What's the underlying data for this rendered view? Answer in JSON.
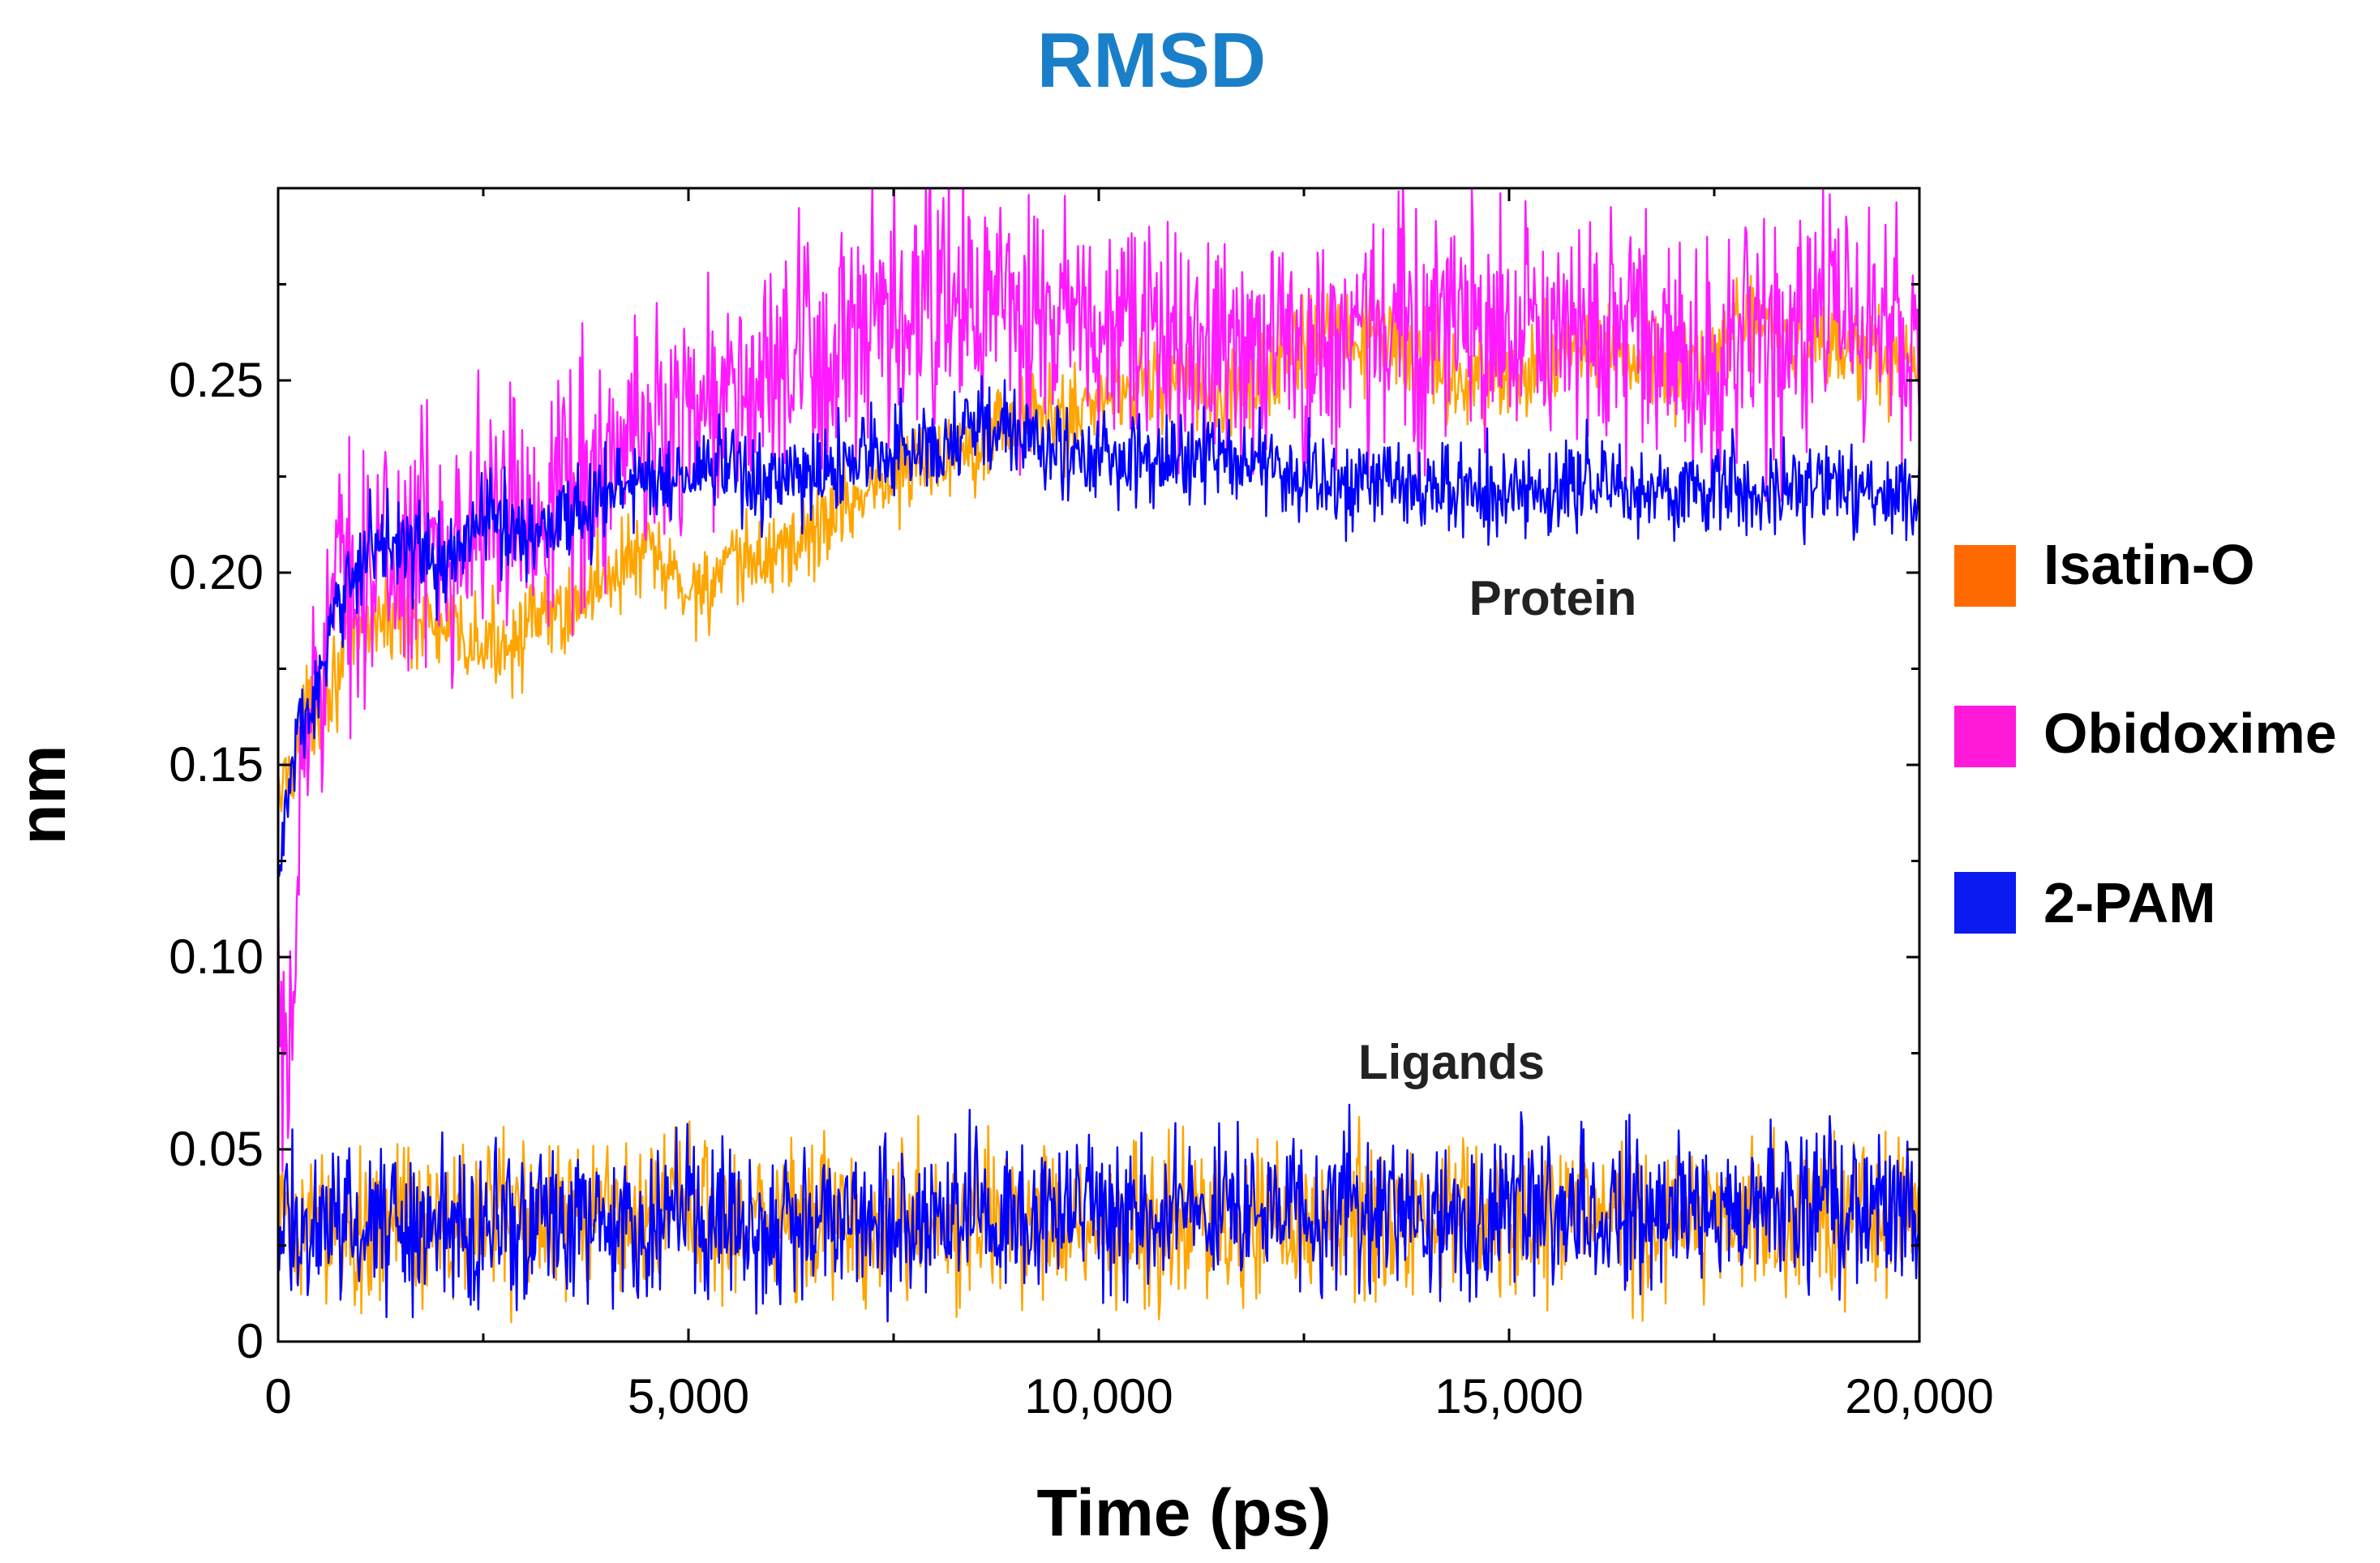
{
  "chart_data": {
    "type": "line",
    "title": "RMSD",
    "xlabel": "Time (ps)",
    "ylabel": "nm",
    "xlim": [
      0,
      20000
    ],
    "ylim": [
      0,
      0.3
    ],
    "x_ticks": [
      0,
      5000,
      10000,
      15000,
      20000
    ],
    "x_tick_labels": [
      "0",
      "5,000",
      "10,000",
      "15,000",
      "20,000"
    ],
    "y_ticks": [
      0,
      0.05,
      0.1,
      0.15,
      0.2,
      0.25
    ],
    "y_tick_labels": [
      "0",
      "0.05",
      "0.10",
      "0.15",
      "0.20",
      "0.25"
    ],
    "grid": false,
    "legend_position": "right",
    "annotations": [
      {
        "text": "Protein",
        "x": 15500,
        "y": 0.193
      },
      {
        "text": "Ligands",
        "x": 14300,
        "y": 0.072
      }
    ],
    "series": [
      {
        "name": "Isatin-O",
        "group": "Protein",
        "color": "#ffa500",
        "legend_color": "#ff6a00",
        "noise": 0.006,
        "x": [
          0,
          300,
          600,
          1000,
          1500,
          2000,
          2500,
          3000,
          3500,
          4000,
          4500,
          5000,
          5500,
          6000,
          6500,
          7000,
          7500,
          8000,
          8500,
          9000,
          9500,
          10000,
          10500,
          11000,
          11500,
          12000,
          12500,
          13000,
          13500,
          14000,
          14500,
          15000,
          15500,
          16000,
          16500,
          17000,
          17500,
          18000,
          18500,
          19000,
          19500,
          20000
        ],
        "y": [
          0.14,
          0.16,
          0.17,
          0.185,
          0.19,
          0.185,
          0.18,
          0.185,
          0.19,
          0.2,
          0.205,
          0.195,
          0.2,
          0.205,
          0.21,
          0.22,
          0.225,
          0.23,
          0.235,
          0.24,
          0.24,
          0.245,
          0.25,
          0.25,
          0.245,
          0.25,
          0.26,
          0.262,
          0.26,
          0.255,
          0.25,
          0.25,
          0.255,
          0.26,
          0.255,
          0.25,
          0.258,
          0.265,
          0.262,
          0.258,
          0.255,
          0.255
        ]
      },
      {
        "name": "Obidoxime",
        "group": "Protein",
        "color": "#ff1aff",
        "legend_color": "#ff1ad9",
        "noise": 0.016,
        "x": [
          0,
          100,
          200,
          300,
          500,
          800,
          1000,
          1500,
          2000,
          2500,
          3000,
          3500,
          4000,
          4500,
          5000,
          5500,
          6000,
          6500,
          7000,
          7500,
          8000,
          8500,
          9000,
          9500,
          10000,
          10500,
          11000,
          11500,
          12000,
          12500,
          13000,
          13500,
          14000,
          14500,
          15000,
          15500,
          16000,
          16500,
          17000,
          17500,
          18000,
          18500,
          19000,
          19500,
          20000
        ],
        "y": [
          0.09,
          0.05,
          0.1,
          0.15,
          0.18,
          0.2,
          0.2,
          0.205,
          0.21,
          0.215,
          0.215,
          0.225,
          0.228,
          0.235,
          0.245,
          0.245,
          0.25,
          0.255,
          0.258,
          0.262,
          0.27,
          0.27,
          0.265,
          0.265,
          0.262,
          0.26,
          0.26,
          0.26,
          0.26,
          0.258,
          0.262,
          0.262,
          0.265,
          0.265,
          0.26,
          0.26,
          0.262,
          0.26,
          0.258,
          0.255,
          0.26,
          0.262,
          0.265,
          0.262,
          0.265
        ]
      },
      {
        "name": "2-PAM",
        "group": "Protein",
        "color": "#0000ff",
        "legend_color": "#0a1af0",
        "noise": 0.006,
        "x": [
          0,
          200,
          500,
          800,
          1000,
          1500,
          2000,
          2500,
          3000,
          3500,
          4000,
          4500,
          5000,
          5500,
          6000,
          6500,
          7000,
          7500,
          8000,
          8500,
          9000,
          9500,
          10000,
          10500,
          11000,
          11500,
          12000,
          12500,
          13000,
          13500,
          14000,
          14500,
          15000,
          15500,
          16000,
          16500,
          17000,
          17500,
          18000,
          18500,
          19000,
          19500,
          20000
        ],
        "y": [
          0.12,
          0.155,
          0.17,
          0.195,
          0.205,
          0.21,
          0.2,
          0.215,
          0.21,
          0.215,
          0.22,
          0.225,
          0.225,
          0.228,
          0.222,
          0.225,
          0.23,
          0.232,
          0.232,
          0.24,
          0.235,
          0.232,
          0.23,
          0.228,
          0.23,
          0.23,
          0.228,
          0.225,
          0.222,
          0.225,
          0.22,
          0.222,
          0.22,
          0.22,
          0.225,
          0.222,
          0.22,
          0.222,
          0.22,
          0.222,
          0.222,
          0.22,
          0.222
        ]
      },
      {
        "name": "Isatin-O",
        "group": "Ligands",
        "color": "#ffa500",
        "noise": 0.01,
        "x": [
          0,
          5000,
          10000,
          15000,
          20000
        ],
        "y": [
          0.03,
          0.033,
          0.03,
          0.032,
          0.035
        ]
      },
      {
        "name": "2-PAM",
        "group": "Ligands",
        "color": "#0000ff",
        "noise": 0.01,
        "x": [
          0,
          5000,
          10000,
          15000,
          20000
        ],
        "y": [
          0.03,
          0.032,
          0.034,
          0.033,
          0.036
        ]
      }
    ],
    "legend": [
      {
        "label": "Isatin-O",
        "color": "#ff6a00"
      },
      {
        "label": "Obidoxime",
        "color": "#ff1ad9"
      },
      {
        "label": "2-PAM",
        "color": "#0a1af0"
      }
    ]
  }
}
